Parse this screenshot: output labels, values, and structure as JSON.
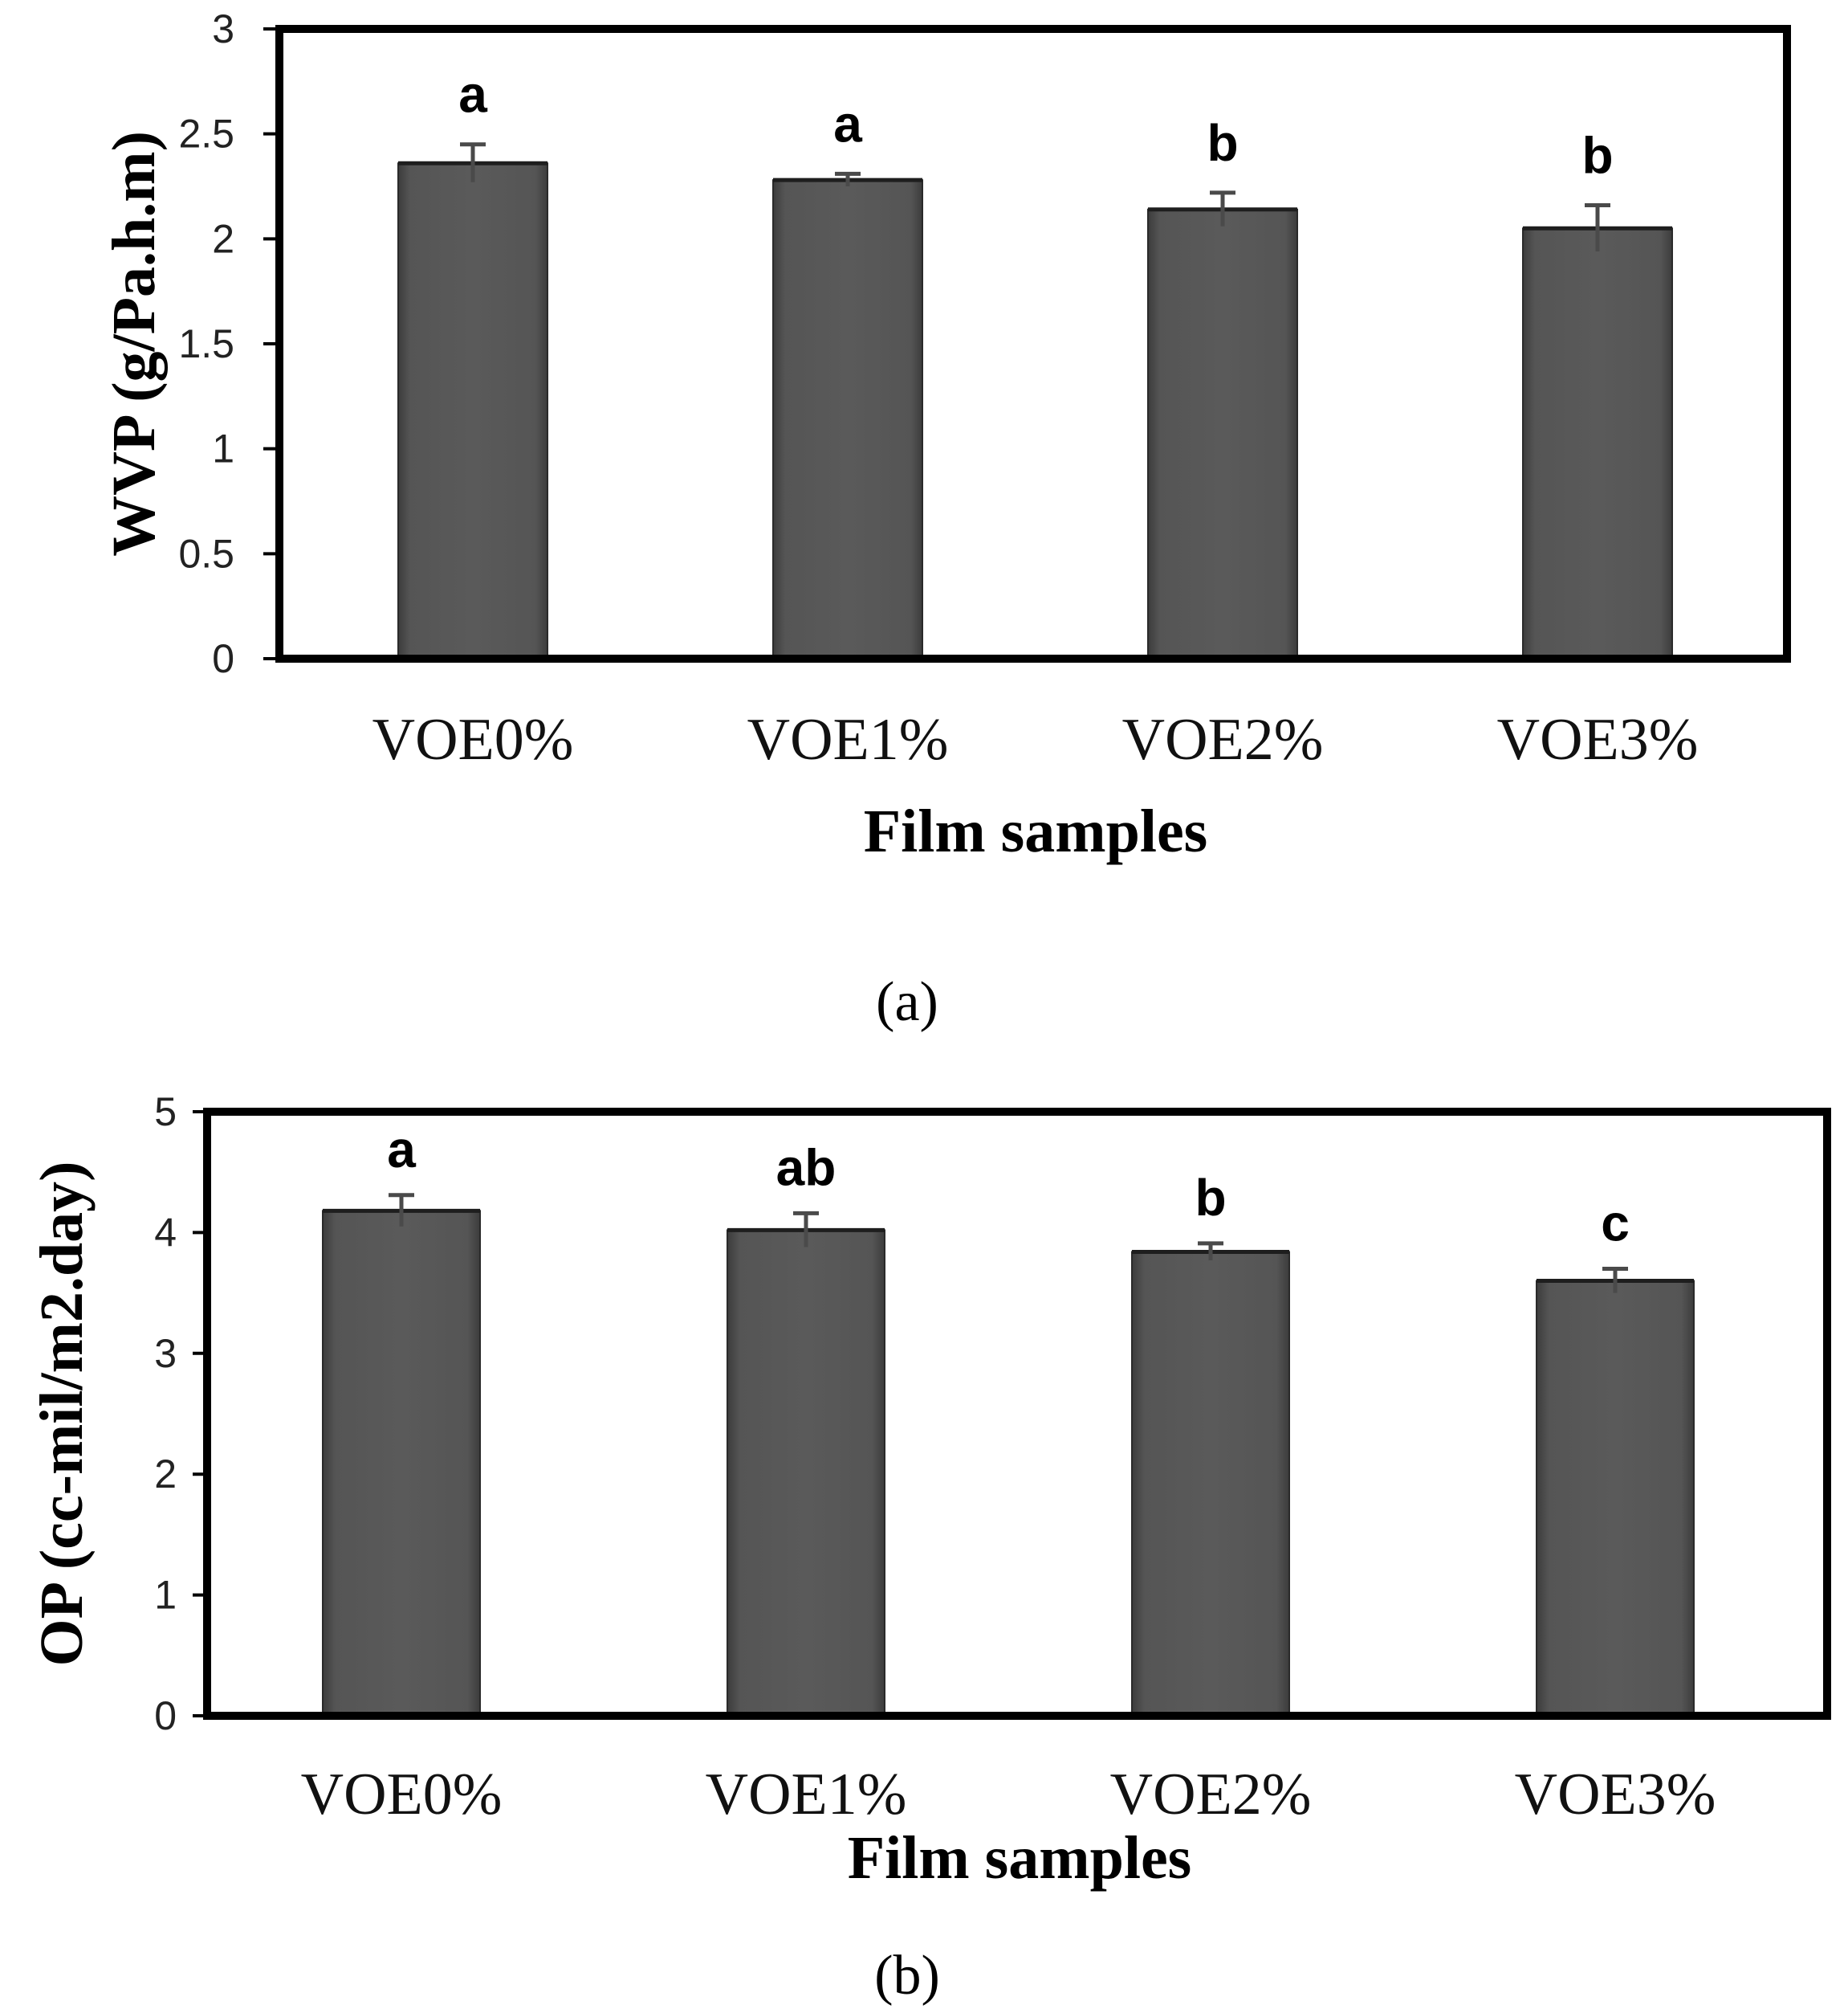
{
  "chart_data": [
    {
      "type": "bar",
      "panel": "a",
      "categories": [
        "VOE0%",
        "VOE1%",
        "VOE2%",
        "VOE3%"
      ],
      "values": [
        2.36,
        2.28,
        2.14,
        2.05
      ],
      "errors": [
        0.09,
        0.03,
        0.08,
        0.11
      ],
      "significance": [
        "a",
        "a",
        "b",
        "b"
      ],
      "xlabel": "Film samples",
      "ylabel": "WVP (g/Pa.h.m)",
      "ylim": [
        0,
        3
      ],
      "yticks": [
        "0",
        "0.5",
        "1",
        "1.5",
        "2",
        "2.5",
        "3"
      ],
      "ytick_values": [
        0,
        0.5,
        1,
        1.5,
        2,
        2.5,
        3
      ],
      "bar_color": "#505050",
      "grid": false
    },
    {
      "type": "bar",
      "panel": "b",
      "categories": [
        "VOE0%",
        "VOE1%",
        "VOE2%",
        "VOE3%"
      ],
      "values": [
        4.18,
        4.02,
        3.84,
        3.6
      ],
      "errors": [
        0.13,
        0.14,
        0.07,
        0.1
      ],
      "significance": [
        "a",
        "ab",
        "b",
        "c"
      ],
      "xlabel": "Film samples",
      "ylabel": "OP (cc-mil/m2.day)",
      "ylim": [
        0,
        5
      ],
      "yticks": [
        "0",
        "1",
        "2",
        "3",
        "4",
        "5"
      ],
      "ytick_values": [
        0,
        1,
        2,
        3,
        4,
        5
      ],
      "bar_color": "#505050",
      "grid": false
    }
  ],
  "panel_labels": [
    "(a)",
    "(b)"
  ]
}
